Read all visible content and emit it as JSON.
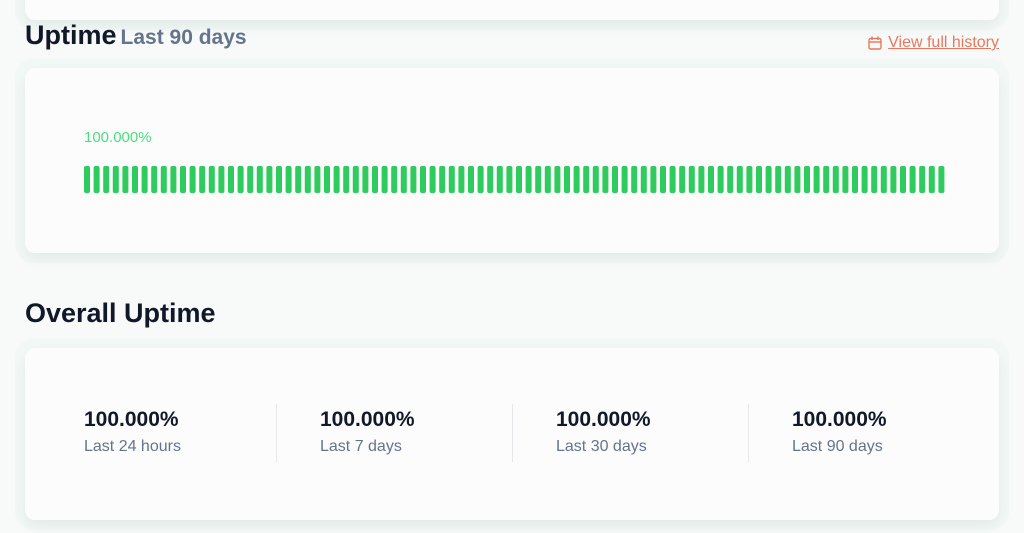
{
  "uptime": {
    "title": "Uptime",
    "subtitle": "Last 90 days",
    "link": "View full history",
    "percent": "100.000%",
    "days": [
      100,
      100,
      100,
      100,
      100,
      100,
      100,
      100,
      100,
      100,
      100,
      100,
      100,
      100,
      100,
      100,
      100,
      100,
      100,
      100,
      100,
      100,
      100,
      100,
      100,
      100,
      100,
      100,
      100,
      100,
      100,
      100,
      100,
      100,
      100,
      100,
      100,
      100,
      100,
      100,
      100,
      100,
      100,
      100,
      100,
      100,
      100,
      100,
      100,
      100,
      100,
      100,
      100,
      100,
      100,
      100,
      100,
      100,
      100,
      100,
      100,
      100,
      100,
      100,
      100,
      100,
      100,
      100,
      100,
      100,
      100,
      100,
      100,
      100,
      100,
      100,
      100,
      100,
      100,
      100,
      100,
      100,
      100,
      100,
      100,
      100,
      100,
      100,
      100,
      100
    ]
  },
  "overall": {
    "title": "Overall Uptime",
    "stats": [
      {
        "value": "100.000%",
        "label": "Last 24 hours"
      },
      {
        "value": "100.000%",
        "label": "Last 7 days"
      },
      {
        "value": "100.000%",
        "label": "Last 30 days"
      },
      {
        "value": "100.000%",
        "label": "Last 90 days"
      }
    ]
  }
}
